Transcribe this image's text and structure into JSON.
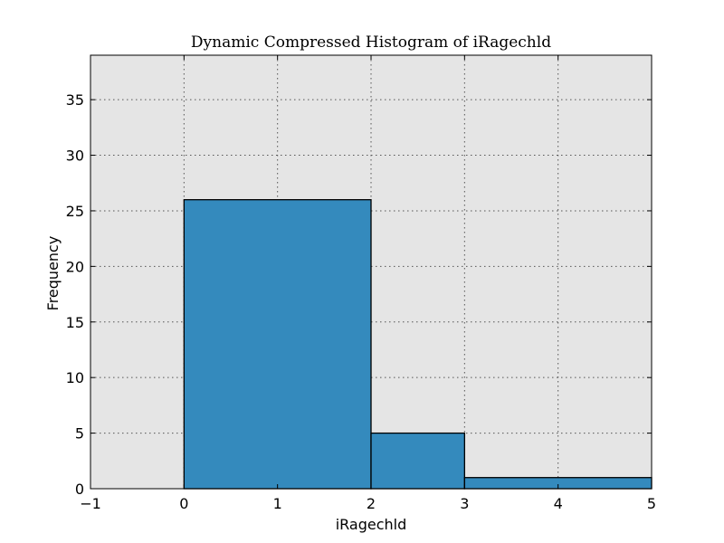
{
  "chart_data": {
    "type": "bar",
    "title": "Dynamic Compressed Histogram of iRagechld",
    "xlabel": "iRagechld",
    "ylabel": "Frequency",
    "xlim": [
      -1,
      5
    ],
    "ylim": [
      0,
      39
    ],
    "xticks": [
      -1,
      0,
      1,
      2,
      3,
      4,
      5
    ],
    "xtick_labels": [
      "−1",
      "0",
      "1",
      "2",
      "3",
      "4",
      "5"
    ],
    "yticks": [
      0,
      5,
      10,
      15,
      20,
      25,
      30,
      35
    ],
    "ytick_labels": [
      "0",
      "5",
      "10",
      "15",
      "20",
      "25",
      "30",
      "35"
    ],
    "grid": true,
    "bins": [
      {
        "x_start": 0,
        "x_end": 2,
        "value": 26
      },
      {
        "x_start": 2,
        "x_end": 3,
        "value": 5
      },
      {
        "x_start": 3,
        "x_end": 5,
        "value": 1
      }
    ],
    "colors": {
      "bar_fill": "#348abd",
      "plot_background": "#e5e5e5"
    }
  }
}
